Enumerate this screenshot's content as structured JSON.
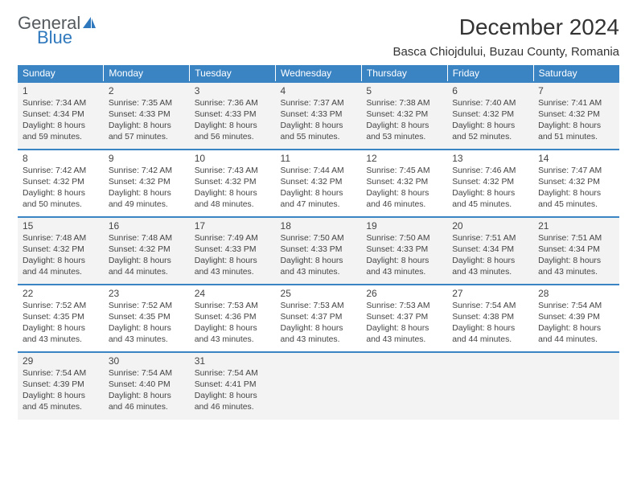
{
  "logo": {
    "text_general": "General",
    "text_blue": "Blue",
    "color_general": "#555a5e",
    "color_blue": "#2f78bd"
  },
  "title": "December 2024",
  "location": "Basca Chiojdului, Buzau County, Romania",
  "weekdays": [
    "Sunday",
    "Monday",
    "Tuesday",
    "Wednesday",
    "Thursday",
    "Friday",
    "Saturday"
  ],
  "colors": {
    "header_bg": "#3b84c4",
    "header_text": "#ffffff",
    "cell_shade": "#f3f3f3",
    "row_border": "#3b84c4",
    "text": "#333333"
  },
  "days": [
    {
      "n": "1",
      "sr": "7:34 AM",
      "ss": "4:34 PM",
      "dl": "8 hours and 59 minutes.",
      "bg": "shade"
    },
    {
      "n": "2",
      "sr": "7:35 AM",
      "ss": "4:33 PM",
      "dl": "8 hours and 57 minutes.",
      "bg": "shade"
    },
    {
      "n": "3",
      "sr": "7:36 AM",
      "ss": "4:33 PM",
      "dl": "8 hours and 56 minutes.",
      "bg": "shade"
    },
    {
      "n": "4",
      "sr": "7:37 AM",
      "ss": "4:33 PM",
      "dl": "8 hours and 55 minutes.",
      "bg": "shade"
    },
    {
      "n": "5",
      "sr": "7:38 AM",
      "ss": "4:32 PM",
      "dl": "8 hours and 53 minutes.",
      "bg": "shade"
    },
    {
      "n": "6",
      "sr": "7:40 AM",
      "ss": "4:32 PM",
      "dl": "8 hours and 52 minutes.",
      "bg": "shade"
    },
    {
      "n": "7",
      "sr": "7:41 AM",
      "ss": "4:32 PM",
      "dl": "8 hours and 51 minutes.",
      "bg": "shade"
    },
    {
      "n": "8",
      "sr": "7:42 AM",
      "ss": "4:32 PM",
      "dl": "8 hours and 50 minutes.",
      "bg": "white"
    },
    {
      "n": "9",
      "sr": "7:42 AM",
      "ss": "4:32 PM",
      "dl": "8 hours and 49 minutes.",
      "bg": "white"
    },
    {
      "n": "10",
      "sr": "7:43 AM",
      "ss": "4:32 PM",
      "dl": "8 hours and 48 minutes.",
      "bg": "white"
    },
    {
      "n": "11",
      "sr": "7:44 AM",
      "ss": "4:32 PM",
      "dl": "8 hours and 47 minutes.",
      "bg": "white"
    },
    {
      "n": "12",
      "sr": "7:45 AM",
      "ss": "4:32 PM",
      "dl": "8 hours and 46 minutes.",
      "bg": "white"
    },
    {
      "n": "13",
      "sr": "7:46 AM",
      "ss": "4:32 PM",
      "dl": "8 hours and 45 minutes.",
      "bg": "white"
    },
    {
      "n": "14",
      "sr": "7:47 AM",
      "ss": "4:32 PM",
      "dl": "8 hours and 45 minutes.",
      "bg": "white"
    },
    {
      "n": "15",
      "sr": "7:48 AM",
      "ss": "4:32 PM",
      "dl": "8 hours and 44 minutes.",
      "bg": "shade"
    },
    {
      "n": "16",
      "sr": "7:48 AM",
      "ss": "4:32 PM",
      "dl": "8 hours and 44 minutes.",
      "bg": "shade"
    },
    {
      "n": "17",
      "sr": "7:49 AM",
      "ss": "4:33 PM",
      "dl": "8 hours and 43 minutes.",
      "bg": "shade"
    },
    {
      "n": "18",
      "sr": "7:50 AM",
      "ss": "4:33 PM",
      "dl": "8 hours and 43 minutes.",
      "bg": "shade"
    },
    {
      "n": "19",
      "sr": "7:50 AM",
      "ss": "4:33 PM",
      "dl": "8 hours and 43 minutes.",
      "bg": "shade"
    },
    {
      "n": "20",
      "sr": "7:51 AM",
      "ss": "4:34 PM",
      "dl": "8 hours and 43 minutes.",
      "bg": "shade"
    },
    {
      "n": "21",
      "sr": "7:51 AM",
      "ss": "4:34 PM",
      "dl": "8 hours and 43 minutes.",
      "bg": "shade"
    },
    {
      "n": "22",
      "sr": "7:52 AM",
      "ss": "4:35 PM",
      "dl": "8 hours and 43 minutes.",
      "bg": "white"
    },
    {
      "n": "23",
      "sr": "7:52 AM",
      "ss": "4:35 PM",
      "dl": "8 hours and 43 minutes.",
      "bg": "white"
    },
    {
      "n": "24",
      "sr": "7:53 AM",
      "ss": "4:36 PM",
      "dl": "8 hours and 43 minutes.",
      "bg": "white"
    },
    {
      "n": "25",
      "sr": "7:53 AM",
      "ss": "4:37 PM",
      "dl": "8 hours and 43 minutes.",
      "bg": "white"
    },
    {
      "n": "26",
      "sr": "7:53 AM",
      "ss": "4:37 PM",
      "dl": "8 hours and 43 minutes.",
      "bg": "white"
    },
    {
      "n": "27",
      "sr": "7:54 AM",
      "ss": "4:38 PM",
      "dl": "8 hours and 44 minutes.",
      "bg": "white"
    },
    {
      "n": "28",
      "sr": "7:54 AM",
      "ss": "4:39 PM",
      "dl": "8 hours and 44 minutes.",
      "bg": "white"
    },
    {
      "n": "29",
      "sr": "7:54 AM",
      "ss": "4:39 PM",
      "dl": "8 hours and 45 minutes.",
      "bg": "shade"
    },
    {
      "n": "30",
      "sr": "7:54 AM",
      "ss": "4:40 PM",
      "dl": "8 hours and 46 minutes.",
      "bg": "shade"
    },
    {
      "n": "31",
      "sr": "7:54 AM",
      "ss": "4:41 PM",
      "dl": "8 hours and 46 minutes.",
      "bg": "shade"
    }
  ],
  "labels": {
    "sunrise": "Sunrise:",
    "sunset": "Sunset:",
    "daylight": "Daylight:"
  },
  "layout": {
    "weeks": 5,
    "cols": 7,
    "trailing_blank_bg": "shade"
  }
}
